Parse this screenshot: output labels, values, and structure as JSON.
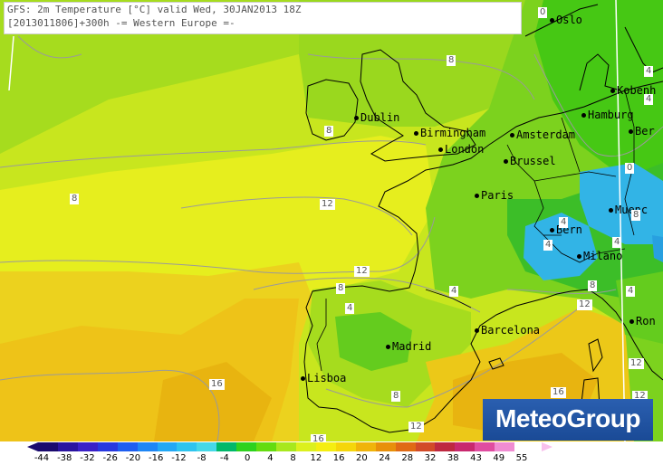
{
  "header": {
    "line1": "GFS: 2m Temperature [°C] valid Wed, 30JAN2013 18Z",
    "line2": "[2013011806]+300h  -= Western Europe =-"
  },
  "logo": {
    "text": "MeteoGroup"
  },
  "cities": [
    {
      "name": "Oslo"
    },
    {
      "name": "Kobenh"
    },
    {
      "name": "Hamburg"
    },
    {
      "name": "Ber"
    },
    {
      "name": "Dublin"
    },
    {
      "name": "Birmingham"
    },
    {
      "name": "Amsterdam"
    },
    {
      "name": "London"
    },
    {
      "name": "Brussel"
    },
    {
      "name": "Paris"
    },
    {
      "name": "Muenc"
    },
    {
      "name": "Bern"
    },
    {
      "name": "Milano"
    },
    {
      "name": "Barcelona"
    },
    {
      "name": "Madrid"
    },
    {
      "name": "Lisboa"
    },
    {
      "name": "Ron"
    }
  ],
  "contour_labels": [
    "8",
    "8",
    "8",
    "12",
    "12",
    "8",
    "4",
    "4",
    "12",
    "16",
    "16",
    "12",
    "8",
    "4",
    "4",
    "4",
    "0",
    "0",
    "4",
    "8",
    "8",
    "12",
    "4",
    "12",
    "16",
    "4"
  ],
  "scale": {
    "ticks": [
      "-44",
      "-38",
      "-32",
      "-26",
      "-20",
      "-16",
      "-12",
      "-8",
      "-4",
      "0",
      "4",
      "8",
      "12",
      "16",
      "20",
      "24",
      "28",
      "32",
      "38",
      "43",
      "49",
      "55"
    ],
    "colors": [
      "#1a0a6e",
      "#2a14a0",
      "#3a20c8",
      "#2838e0",
      "#1e5ef0",
      "#1e86f5",
      "#23a8f5",
      "#2ec4ef",
      "#46d8e8",
      "#00b86a",
      "#2ed21e",
      "#64dc10",
      "#a8e81e",
      "#dcf01e",
      "#f5ee10",
      "#f5d60a",
      "#f0b40a",
      "#e8900a",
      "#e06a14",
      "#d24a28",
      "#be2840",
      "#c8286e",
      "#e04ca0",
      "#f08cd2"
    ]
  },
  "colors": {
    "ocean_warm": "#e8c81e",
    "land_mid": "#9ad81e",
    "land_cool": "#46c814",
    "cold": "#32b4e6"
  }
}
